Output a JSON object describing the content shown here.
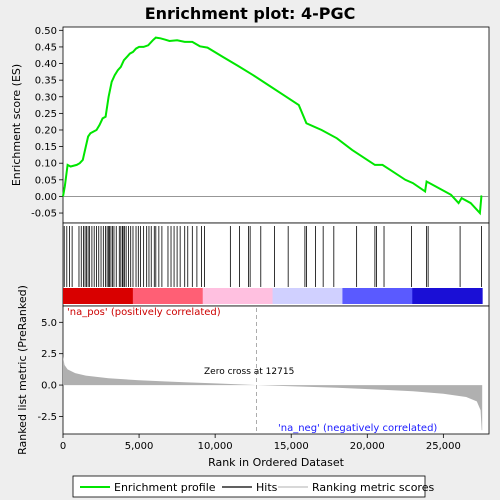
{
  "chart_data": {
    "type": "line",
    "title": "Enrichment plot: 4-PGC",
    "x_range": [
      0,
      28000
    ],
    "x_ticks": [
      0,
      5000,
      10000,
      15000,
      20000,
      25000
    ],
    "x_tick_labels": [
      "0",
      "5,000",
      "10,000",
      "15,000",
      "20,000",
      "25,000"
    ],
    "xlabel": "Rank in Ordered Dataset",
    "es_panel": {
      "ylabel": "Enrichment score (ES)",
      "ylim": [
        -0.08,
        0.51
      ],
      "y_ticks": [
        -0.05,
        0.0,
        0.05,
        0.1,
        0.15,
        0.2,
        0.25,
        0.3,
        0.35,
        0.4,
        0.45,
        0.5
      ],
      "y_tick_labels": [
        "-0.05",
        "0.00",
        "0.05",
        "0.10",
        "0.15",
        "0.20",
        "0.25",
        "0.30",
        "0.35",
        "0.40",
        "0.45",
        "0.50"
      ],
      "series_name": "Enrichment profile",
      "points": [
        [
          0,
          0.0
        ],
        [
          120,
          0.03
        ],
        [
          300,
          0.095
        ],
        [
          500,
          0.09
        ],
        [
          900,
          0.095
        ],
        [
          1100,
          0.1
        ],
        [
          1300,
          0.11
        ],
        [
          1500,
          0.15
        ],
        [
          1650,
          0.18
        ],
        [
          1800,
          0.19
        ],
        [
          2000,
          0.195
        ],
        [
          2200,
          0.2
        ],
        [
          2400,
          0.215
        ],
        [
          2600,
          0.235
        ],
        [
          2800,
          0.24
        ],
        [
          3000,
          0.3
        ],
        [
          3200,
          0.345
        ],
        [
          3400,
          0.365
        ],
        [
          3600,
          0.38
        ],
        [
          3800,
          0.39
        ],
        [
          4000,
          0.41
        ],
        [
          4200,
          0.42
        ],
        [
          4400,
          0.43
        ],
        [
          4600,
          0.435
        ],
        [
          4800,
          0.445
        ],
        [
          5000,
          0.45
        ],
        [
          5300,
          0.45
        ],
        [
          5600,
          0.455
        ],
        [
          5900,
          0.47
        ],
        [
          6100,
          0.478
        ],
        [
          6400,
          0.476
        ],
        [
          6700,
          0.472
        ],
        [
          7000,
          0.468
        ],
        [
          7500,
          0.47
        ],
        [
          8000,
          0.465
        ],
        [
          8500,
          0.465
        ],
        [
          9000,
          0.452
        ],
        [
          9500,
          0.448
        ],
        [
          10500,
          0.42
        ],
        [
          11500,
          0.393
        ],
        [
          12500,
          0.365
        ],
        [
          13500,
          0.335
        ],
        [
          14500,
          0.305
        ],
        [
          15500,
          0.275
        ],
        [
          16000,
          0.22
        ],
        [
          17000,
          0.2
        ],
        [
          18000,
          0.175
        ],
        [
          19000,
          0.14
        ],
        [
          19500,
          0.125
        ],
        [
          20000,
          0.11
        ],
        [
          20500,
          0.095
        ],
        [
          21000,
          0.095
        ],
        [
          21500,
          0.08
        ],
        [
          22500,
          0.05
        ],
        [
          23000,
          0.04
        ],
        [
          23800,
          0.015
        ],
        [
          23900,
          0.045
        ],
        [
          24500,
          0.03
        ],
        [
          25500,
          0.005
        ],
        [
          26000,
          -0.02
        ],
        [
          26200,
          -0.005
        ],
        [
          26800,
          -0.02
        ],
        [
          27400,
          -0.05
        ],
        [
          27500,
          0.0
        ],
        [
          27550,
          0.0
        ]
      ]
    },
    "hits": [
      80,
      250,
      420,
      600,
      1050,
      1200,
      1350,
      1450,
      1550,
      1650,
      1750,
      1900,
      2050,
      2200,
      2350,
      2500,
      2650,
      2800,
      2900,
      3000,
      3050,
      3150,
      3250,
      3350,
      3500,
      3700,
      3800,
      3900,
      3950,
      4050,
      4150,
      4300,
      4450,
      4600,
      4800,
      4950,
      5100,
      5300,
      5500,
      5650,
      5800,
      6000,
      6100,
      6300,
      6500,
      6900,
      7100,
      7300,
      7500,
      7700,
      8000,
      8200,
      8500,
      8800,
      9100,
      9300,
      11000,
      11600,
      12200,
      12300,
      13000,
      13900,
      14800,
      15900,
      16000,
      16600,
      17100,
      17800,
      19300,
      20500,
      20600,
      21100,
      22900,
      23900,
      24000,
      26100,
      27500
    ],
    "heatmap_colors": [
      "#d90000",
      "#ff5f75",
      "#ffc0e0",
      "#d0d0ff",
      "#5a5aff",
      "#1a0fd6"
    ],
    "metric_panel": {
      "ylabel": "Ranked list metric (PreRanked)",
      "ylim": [
        -3.9,
        6.3
      ],
      "y_ticks": [
        -2.5,
        0.0,
        2.5,
        5.0
      ],
      "y_tick_labels": [
        "-2.5",
        "0.0",
        "2.5",
        "5.0"
      ],
      "points": [
        [
          0,
          2.3
        ],
        [
          100,
          1.6
        ],
        [
          300,
          1.25
        ],
        [
          800,
          0.95
        ],
        [
          1500,
          0.75
        ],
        [
          3000,
          0.55
        ],
        [
          5000,
          0.38
        ],
        [
          8000,
          0.22
        ],
        [
          10000,
          0.13
        ],
        [
          12715,
          0.0
        ],
        [
          15000,
          -0.1
        ],
        [
          18000,
          -0.22
        ],
        [
          21000,
          -0.38
        ],
        [
          23000,
          -0.5
        ],
        [
          25000,
          -0.7
        ],
        [
          26500,
          -0.95
        ],
        [
          27200,
          -1.3
        ],
        [
          27450,
          -2.0
        ],
        [
          27520,
          -3.6
        ],
        [
          27550,
          -3.6
        ]
      ],
      "series_name": "Ranking metric scores"
    },
    "zero_cross": 12715,
    "annotations": {
      "pos_label": "'na_pos' (positively correlated)",
      "neg_label": "'na_neg' (negatively correlated)",
      "zero_cross_label": "Zero cross at 12715"
    },
    "legend": {
      "position": "bottom",
      "entries": [
        {
          "label": "Enrichment profile",
          "color": "#00cc00"
        },
        {
          "label": "Hits",
          "color": "#000000"
        },
        {
          "label": "Ranking metric scores",
          "color": "#c0c0c0"
        }
      ]
    },
    "colors": {
      "profile": "#00e600",
      "metric_fill": "#b0b0b0",
      "background": "#eeeeee"
    }
  }
}
